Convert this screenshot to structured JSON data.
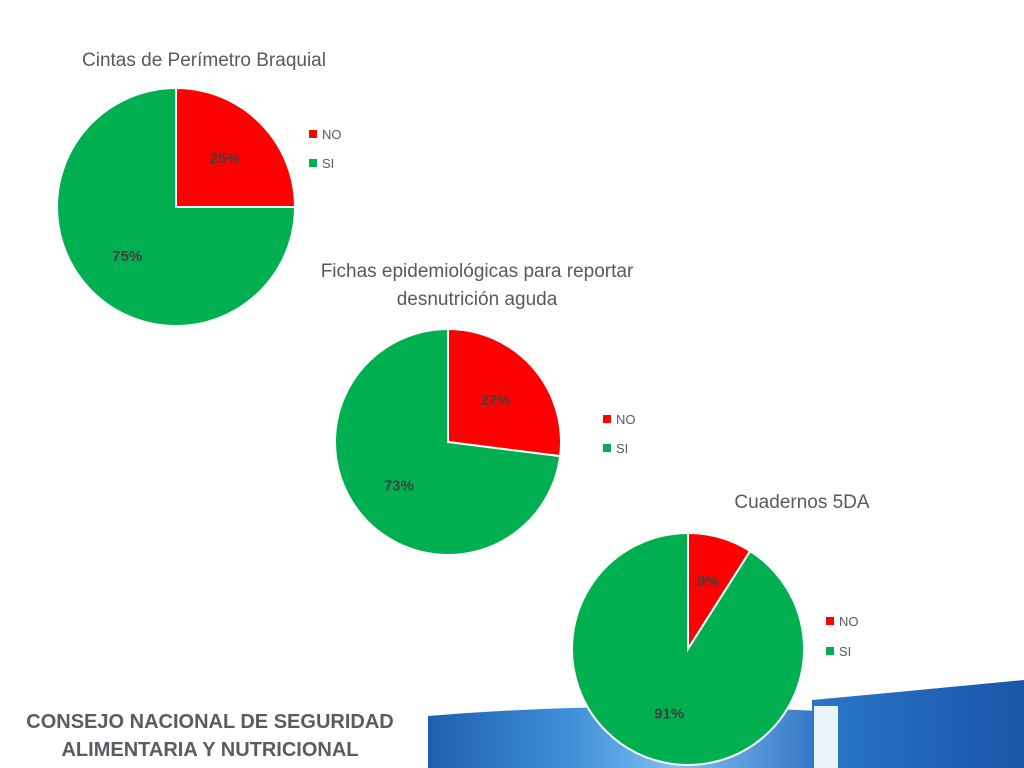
{
  "colors": {
    "no": "#ff0000",
    "si": "#00b050"
  },
  "chart_data": [
    {
      "type": "pie",
      "title": "Cintas de Perímetro Braquial",
      "categories": [
        "NO",
        "SI"
      ],
      "values": [
        25,
        75
      ],
      "labels": [
        "25%",
        "75%"
      ],
      "legend": "right"
    },
    {
      "type": "pie",
      "title": "Fichas epidemiológicas para reportar desnutrición aguda",
      "title_lines": [
        "Fichas epidemiológicas para reportar",
        "desnutrición aguda"
      ],
      "categories": [
        "NO",
        "SI"
      ],
      "values": [
        27,
        73
      ],
      "labels": [
        "27%",
        "73%"
      ],
      "legend": "right"
    },
    {
      "type": "pie",
      "title": "Cuadernos 5DA",
      "categories": [
        "NO",
        "SI"
      ],
      "values": [
        9,
        91
      ],
      "labels": [
        "9%",
        "91%"
      ],
      "legend": "right"
    }
  ],
  "footer": {
    "line1": "CONSEJO NACIONAL DE SEGURIDAD",
    "line2": "ALIMENTARIA Y NUTRICIONAL"
  }
}
